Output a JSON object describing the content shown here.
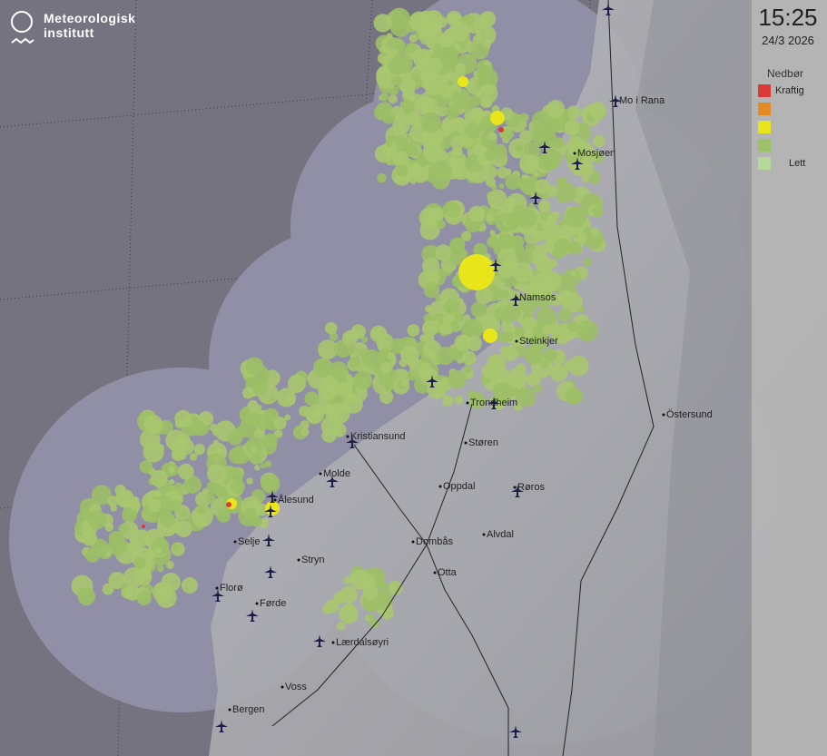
{
  "logo": {
    "line1": "Meteorologisk",
    "line2": "institutt"
  },
  "timestamp": {
    "time": "15:25",
    "date": "24/3 2026"
  },
  "legend": {
    "title": "Nedbør",
    "items": [
      {
        "label": "Kraftig",
        "color": "#d93a36"
      },
      {
        "label": "",
        "color": "#e48a22"
      },
      {
        "label": "",
        "color": "#e9e51b"
      },
      {
        "label": "",
        "color": "#9cc167"
      },
      {
        "label": "Lett",
        "color": "#b5d99a"
      }
    ]
  },
  "cities": [
    "Mo i Rana",
    "Mosjøen",
    "Namsos",
    "Steinkjer",
    "Trondheim",
    "Östersund",
    "Kristiansund",
    "Støren",
    "Molde",
    "Ålesund",
    "Oppdal",
    "Røros",
    "Selje",
    "Dombås",
    "Alvdal",
    "Stryn",
    "Otta",
    "Florø",
    "Førde",
    "Lærdalsøyri",
    "Voss",
    "Bergen"
  ],
  "icons": {
    "airport": "airplane-icon"
  }
}
